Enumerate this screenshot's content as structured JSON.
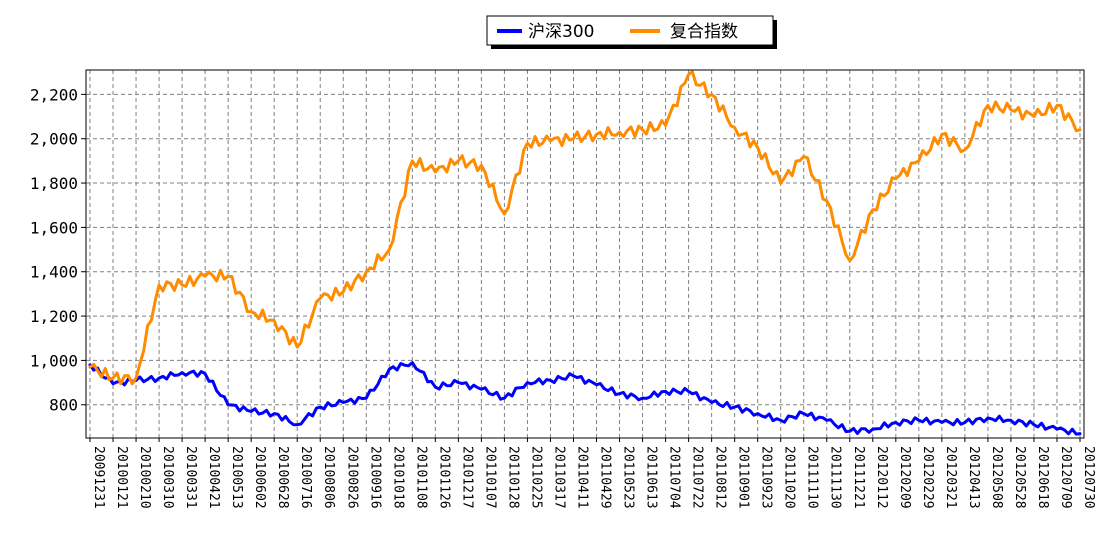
{
  "chart_data": {
    "type": "line",
    "title": "",
    "xlabel": "",
    "ylabel": "",
    "ylim": [
      650,
      2310
    ],
    "yticks": [
      800,
      1000,
      1200,
      1400,
      1600,
      1800,
      2000,
      2200
    ],
    "ytick_labels": [
      "800",
      "1,000",
      "1,200",
      "1,400",
      "1,600",
      "1,800",
      "2,000",
      "2,200"
    ],
    "grid": true,
    "legend_position": "top-center",
    "categories": [
      "20091231",
      "20100121",
      "20100210",
      "20100310",
      "20100331",
      "20100421",
      "20100513",
      "20100602",
      "20100628",
      "20100716",
      "20100806",
      "20100826",
      "20100916",
      "20101018",
      "20101108",
      "20101126",
      "20101217",
      "20110107",
      "20110128",
      "20110225",
      "20110317",
      "20110411",
      "20110429",
      "20110523",
      "20110613",
      "20110704",
      "20110722",
      "20110812",
      "20110901",
      "20110923",
      "20111020",
      "20111110",
      "20111130",
      "20111221",
      "20120112",
      "20120209",
      "20120229",
      "20120321",
      "20120413",
      "20120508",
      "20120528",
      "20120618",
      "20120709",
      "20120730"
    ],
    "series": [
      {
        "name": "沪深300",
        "color": "#0000ff",
        "values": [
          980,
          895,
          910,
          920,
          945,
          940,
          800,
          770,
          760,
          710,
          790,
          810,
          830,
          960,
          990,
          880,
          900,
          870,
          830,
          900,
          910,
          930,
          890,
          850,
          830,
          860,
          860,
          810,
          790,
          760,
          730,
          760,
          730,
          680,
          690,
          720,
          730,
          720,
          720,
          740,
          730,
          710,
          690,
          670
        ]
      },
      {
        "name": "复合指数",
        "color": "#ff8c00",
        "values": [
          970,
          920,
          920,
          1340,
          1340,
          1380,
          1380,
          1220,
          1180,
          1060,
          1280,
          1310,
          1400,
          1500,
          1900,
          1850,
          1900,
          1880,
          1660,
          1980,
          1990,
          2000,
          2020,
          2030,
          2040,
          2060,
          2290,
          2200,
          2050,
          1960,
          1800,
          1920,
          1720,
          1450,
          1680,
          1820,
          1900,
          2020,
          1950,
          2150,
          2130,
          2100,
          2150,
          2040
        ]
      }
    ]
  }
}
